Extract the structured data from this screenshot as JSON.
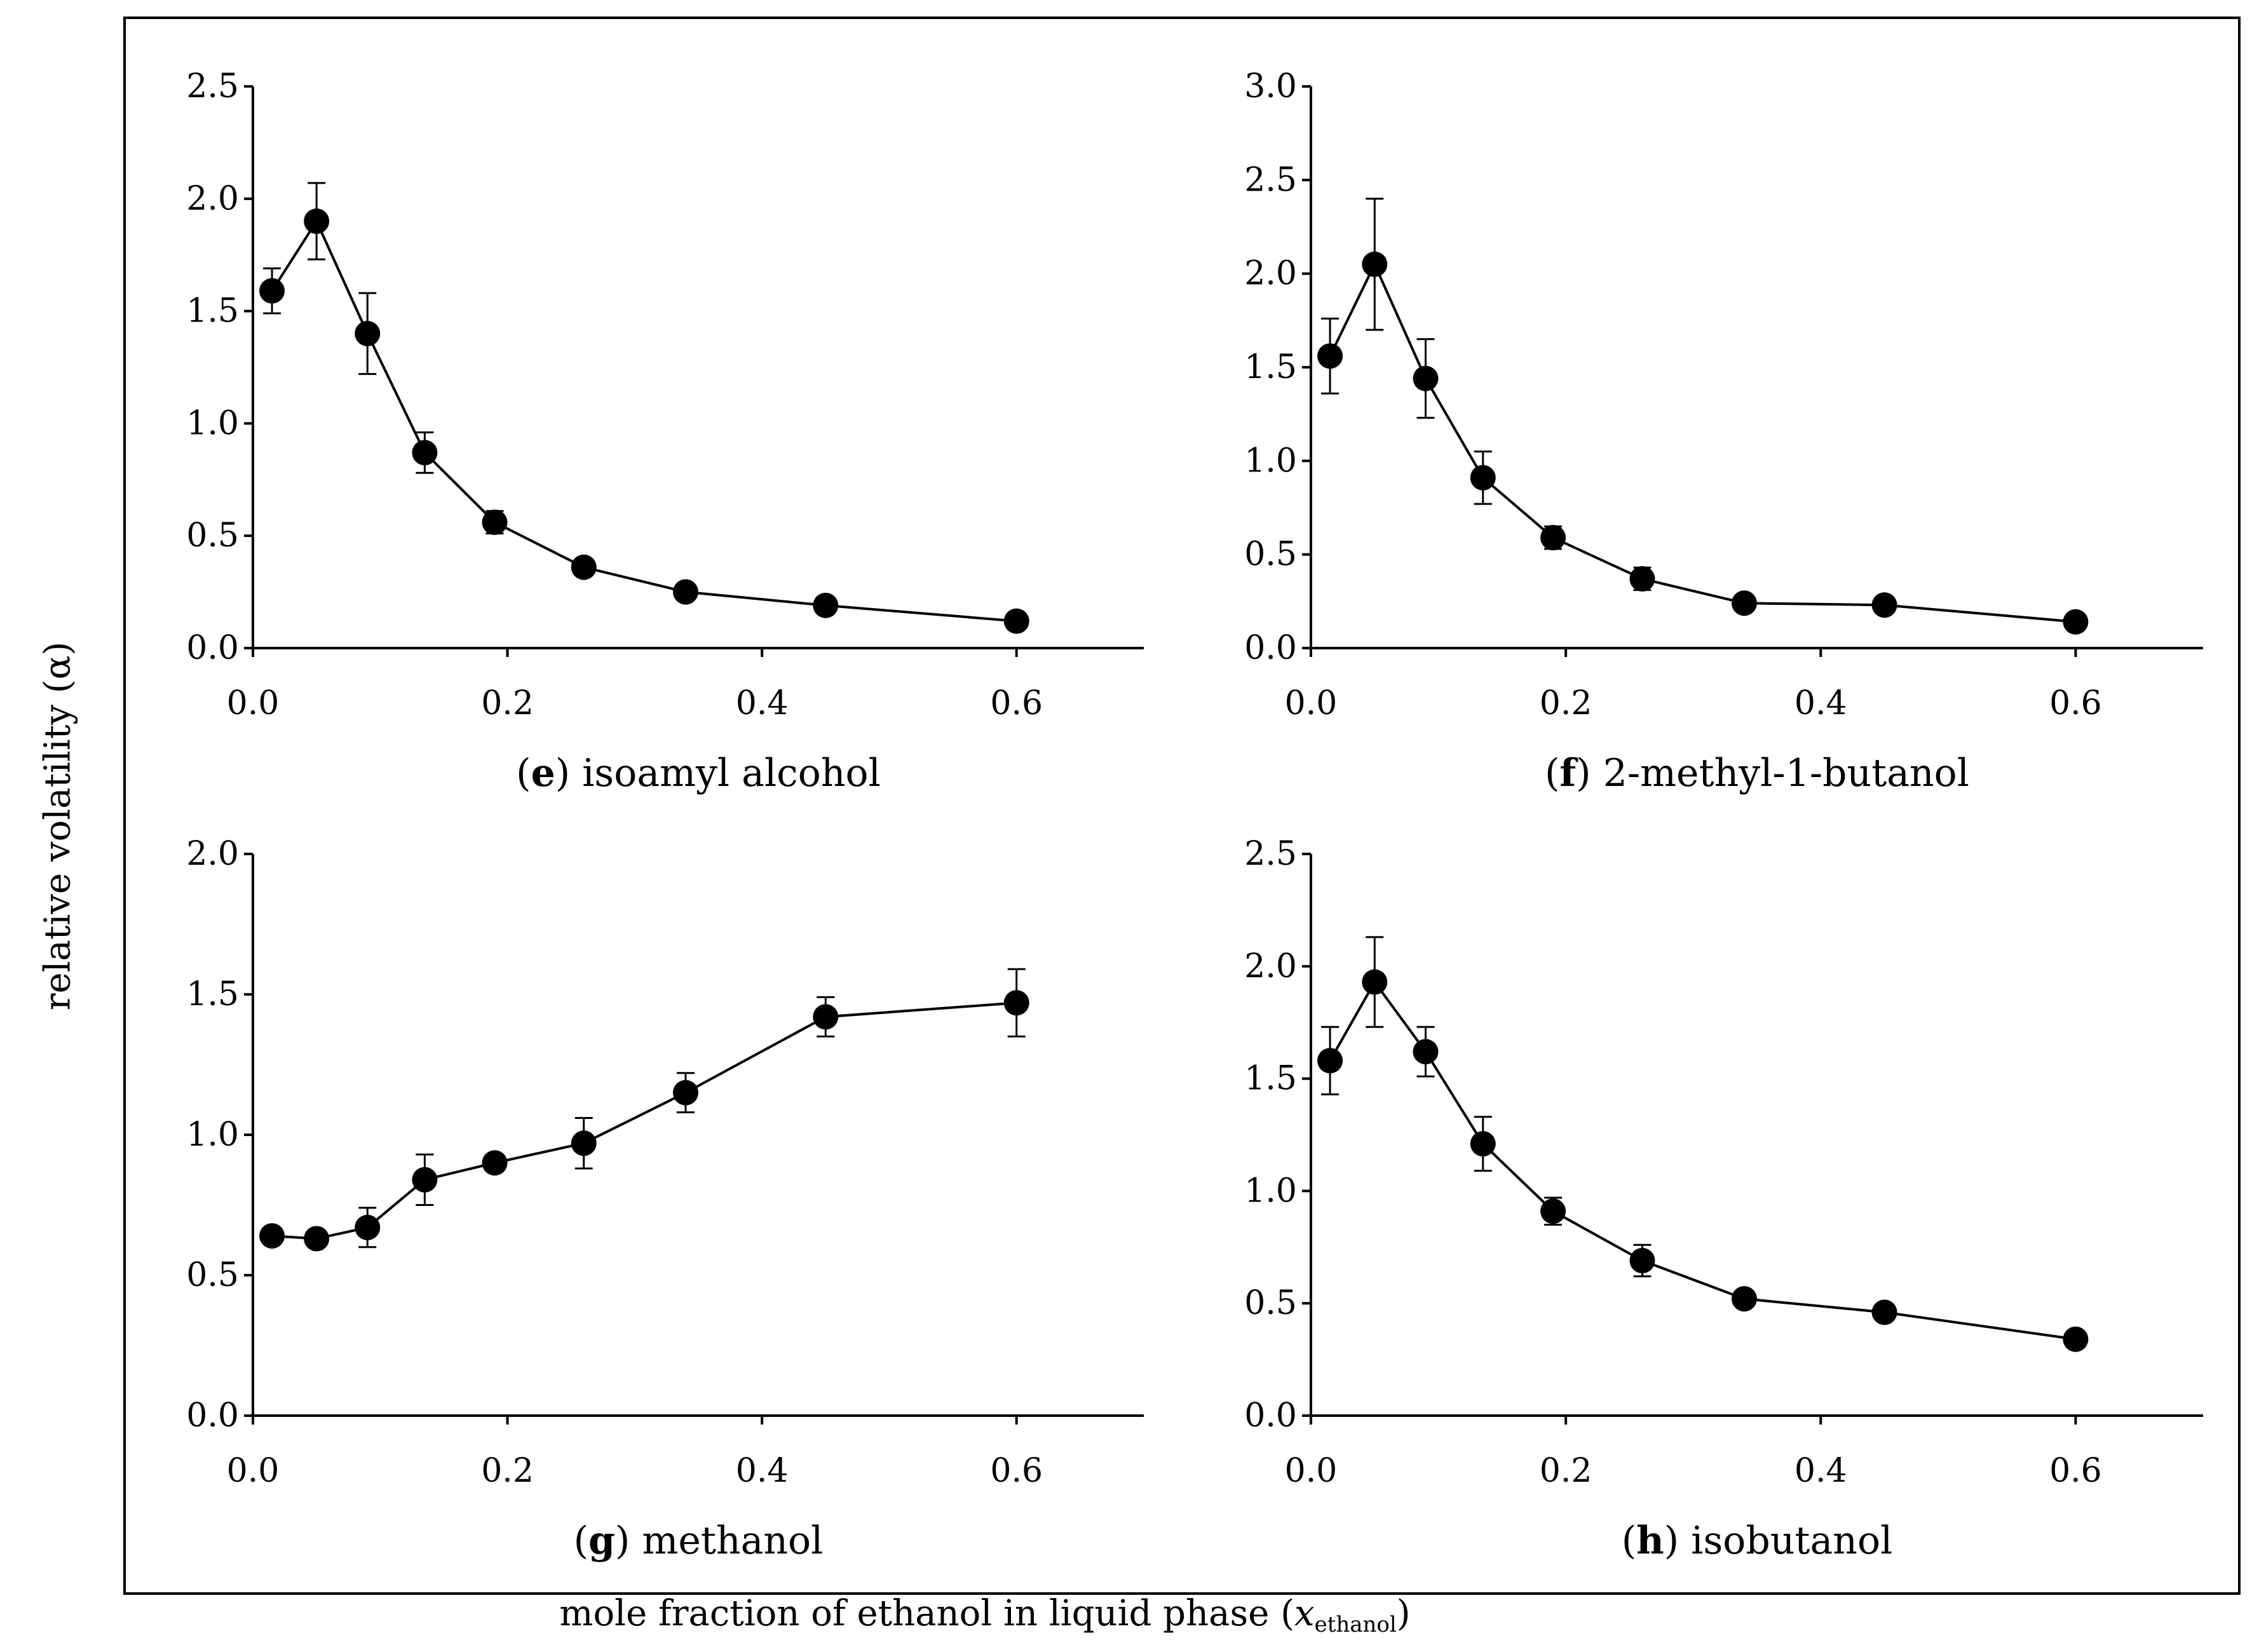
{
  "y_axis_title": "relative volatility (α)",
  "x_axis_title_main": "mole fraction of ethanol in liquid phase (",
  "x_axis_title_var": "x",
  "x_axis_title_sub": "ethanol",
  "x_axis_title_end": ")",
  "colors": {
    "line": "#000000",
    "marker": "#000000",
    "background": "#ffffff"
  },
  "chart_data": [
    {
      "type": "line",
      "panel_letter": "e",
      "panel_name": " isoamyl alcohol",
      "xlim": [
        0,
        0.7
      ],
      "ylim": [
        0,
        2.5
      ],
      "x_ticks": [
        0,
        0.2,
        0.4,
        0.6
      ],
      "x_tick_labels": [
        "0.0",
        "0.2",
        "0.4",
        "0.6"
      ],
      "y_ticks": [
        0,
        0.5,
        1.0,
        1.5,
        2.0,
        2.5
      ],
      "y_tick_labels": [
        "0.0",
        "0.5",
        "1.0",
        "1.5",
        "2.0",
        "2.5"
      ],
      "series": [
        {
          "name": "isoamyl alcohol",
          "x": [
            0.015,
            0.05,
            0.09,
            0.135,
            0.19,
            0.26,
            0.34,
            0.45,
            0.6
          ],
          "y": [
            1.59,
            1.9,
            1.4,
            0.87,
            0.56,
            0.36,
            0.25,
            0.19,
            0.12
          ],
          "err": [
            0.1,
            0.17,
            0.18,
            0.09,
            0.05,
            0.03,
            0.02,
            0.02,
            0.02
          ]
        }
      ]
    },
    {
      "type": "line",
      "panel_letter": "f",
      "panel_name": " 2-methyl-1-butanol",
      "xlim": [
        0,
        0.7
      ],
      "ylim": [
        0,
        3.0
      ],
      "x_ticks": [
        0,
        0.2,
        0.4,
        0.6
      ],
      "x_tick_labels": [
        "0.0",
        "0.2",
        "0.4",
        "0.6"
      ],
      "y_ticks": [
        0,
        0.5,
        1.0,
        1.5,
        2.0,
        2.5,
        3.0
      ],
      "y_tick_labels": [
        "0.0",
        "0.5",
        "1.0",
        "1.5",
        "2.0",
        "2.5",
        "3.0"
      ],
      "series": [
        {
          "name": "2-methyl-1-butanol",
          "x": [
            0.015,
            0.05,
            0.09,
            0.135,
            0.19,
            0.26,
            0.34,
            0.45,
            0.6
          ],
          "y": [
            1.56,
            2.05,
            1.44,
            0.91,
            0.59,
            0.37,
            0.24,
            0.23,
            0.14
          ],
          "err": [
            0.2,
            0.35,
            0.21,
            0.14,
            0.06,
            0.06,
            0.02,
            0.02,
            0.02
          ]
        }
      ]
    },
    {
      "type": "line",
      "panel_letter": "g",
      "panel_name": " methanol",
      "xlim": [
        0,
        0.7
      ],
      "ylim": [
        0,
        2.0
      ],
      "x_ticks": [
        0,
        0.2,
        0.4,
        0.6
      ],
      "x_tick_labels": [
        "0.0",
        "0.2",
        "0.4",
        "0.6"
      ],
      "y_ticks": [
        0,
        0.5,
        1.0,
        1.5,
        2.0
      ],
      "y_tick_labels": [
        "0.0",
        "0.5",
        "1.0",
        "1.5",
        "2.0"
      ],
      "series": [
        {
          "name": "methanol",
          "x": [
            0.015,
            0.05,
            0.09,
            0.135,
            0.19,
            0.26,
            0.34,
            0.45,
            0.6
          ],
          "y": [
            0.64,
            0.63,
            0.67,
            0.84,
            0.9,
            0.97,
            1.15,
            1.42,
            1.47
          ],
          "err": [
            0.02,
            0.03,
            0.07,
            0.09,
            0.03,
            0.09,
            0.07,
            0.07,
            0.12
          ]
        }
      ]
    },
    {
      "type": "line",
      "panel_letter": "h",
      "panel_name": " isobutanol",
      "xlim": [
        0,
        0.7
      ],
      "ylim": [
        0,
        2.5
      ],
      "x_ticks": [
        0,
        0.2,
        0.4,
        0.6
      ],
      "x_tick_labels": [
        "0.0",
        "0.2",
        "0.4",
        "0.6"
      ],
      "y_ticks": [
        0,
        0.5,
        1.0,
        1.5,
        2.0,
        2.5
      ],
      "y_tick_labels": [
        "0.0",
        "0.5",
        "1.0",
        "1.5",
        "2.0",
        "2.5"
      ],
      "series": [
        {
          "name": "isobutanol",
          "x": [
            0.015,
            0.05,
            0.09,
            0.135,
            0.19,
            0.26,
            0.34,
            0.45,
            0.6
          ],
          "y": [
            1.58,
            1.93,
            1.62,
            1.21,
            0.91,
            0.69,
            0.52,
            0.46,
            0.34
          ],
          "err": [
            0.15,
            0.2,
            0.11,
            0.12,
            0.06,
            0.07,
            0.03,
            0.03,
            0.03
          ]
        }
      ]
    }
  ]
}
